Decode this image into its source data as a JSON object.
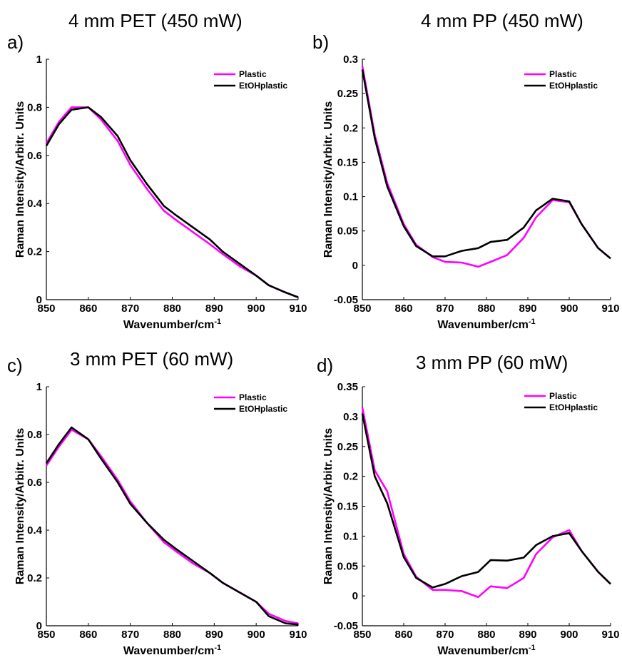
{
  "colors": {
    "plastic": "#ff00ff",
    "etoh": "#000000",
    "axis": "#000000"
  },
  "chart_data": [
    {
      "panel": "a)",
      "title": "4 mm PET (450 mW)",
      "type": "line",
      "xlabel": "Wavenumber/cm",
      "xlabel_sup": "-1",
      "ylabel": "Raman Intensity/Arbitr. Units",
      "xlim": [
        850,
        910
      ],
      "ylim": [
        0,
        1
      ],
      "xticks": [
        "850",
        "860",
        "870",
        "880",
        "890",
        "900",
        "910"
      ],
      "yticks": [
        "0",
        "0.2",
        "0.4",
        "0.6",
        "0.8",
        "1"
      ],
      "legend_position": "top-right",
      "series": [
        {
          "name": "Plastic",
          "color": "#ff00ff",
          "x": [
            850,
            853,
            856,
            860,
            863,
            867,
            870,
            874,
            878,
            881,
            885,
            889,
            892,
            896,
            900,
            903,
            907,
            910
          ],
          "y": [
            0.65,
            0.74,
            0.8,
            0.8,
            0.75,
            0.66,
            0.56,
            0.46,
            0.37,
            0.33,
            0.28,
            0.23,
            0.19,
            0.14,
            0.1,
            0.06,
            0.03,
            0.01
          ]
        },
        {
          "name": "EtOHplastic",
          "color": "#000000",
          "x": [
            850,
            853,
            856,
            860,
            863,
            867,
            870,
            874,
            878,
            881,
            885,
            889,
            892,
            896,
            900,
            903,
            907,
            910
          ],
          "y": [
            0.64,
            0.73,
            0.79,
            0.8,
            0.76,
            0.68,
            0.58,
            0.48,
            0.39,
            0.35,
            0.3,
            0.25,
            0.2,
            0.15,
            0.1,
            0.06,
            0.03,
            0.01
          ]
        }
      ]
    },
    {
      "panel": "b)",
      "title": "4 mm PP (450 mW)",
      "type": "line",
      "xlabel": "Wavenumber/cm",
      "xlabel_sup": "-1",
      "ylabel": "Raman Intensity/Arbitr. Units",
      "xlim": [
        850,
        910
      ],
      "ylim": [
        -0.05,
        0.3
      ],
      "xticks": [
        "850",
        "860",
        "870",
        "880",
        "890",
        "900",
        "910"
      ],
      "yticks": [
        "-0.05",
        "0",
        "0.05",
        "0.1",
        "0.15",
        "0.2",
        "0.25",
        "0.3"
      ],
      "legend_position": "top-right",
      "series": [
        {
          "name": "Plastic",
          "color": "#ff00ff",
          "x": [
            850,
            853,
            856,
            860,
            863,
            867,
            870,
            874,
            878,
            881,
            885,
            889,
            892,
            896,
            900,
            903,
            907,
            910
          ],
          "y": [
            0.29,
            0.19,
            0.12,
            0.06,
            0.03,
            0.012,
            0.005,
            0.004,
            -0.002,
            0.005,
            0.015,
            0.04,
            0.07,
            0.095,
            0.092,
            0.06,
            0.025,
            0.01
          ]
        },
        {
          "name": "EtOHplastic",
          "color": "#000000",
          "x": [
            850,
            853,
            856,
            860,
            863,
            867,
            870,
            874,
            878,
            881,
            885,
            889,
            892,
            896,
            900,
            903,
            907,
            910
          ],
          "y": [
            0.285,
            0.185,
            0.115,
            0.057,
            0.028,
            0.013,
            0.013,
            0.021,
            0.025,
            0.034,
            0.037,
            0.055,
            0.08,
            0.097,
            0.093,
            0.06,
            0.025,
            0.01
          ]
        }
      ]
    },
    {
      "panel": "c)",
      "title": "3 mm PET (60 mW)",
      "type": "line",
      "xlabel": "Wavenumber/cm",
      "xlabel_sup": "-1",
      "ylabel": "Raman Intensity/Arbitr. Units",
      "xlim": [
        850,
        910
      ],
      "ylim": [
        0,
        1
      ],
      "xticks": [
        "850",
        "860",
        "870",
        "880",
        "890",
        "900",
        "910"
      ],
      "yticks": [
        "0",
        "0.2",
        "0.4",
        "0.6",
        "0.8",
        "1"
      ],
      "legend_position": "top-right",
      "series": [
        {
          "name": "Plastic",
          "color": "#ff00ff",
          "x": [
            850,
            853,
            856,
            860,
            863,
            867,
            870,
            874,
            878,
            881,
            885,
            889,
            892,
            896,
            900,
            903,
            907,
            910
          ],
          "y": [
            0.67,
            0.75,
            0.82,
            0.78,
            0.71,
            0.61,
            0.52,
            0.43,
            0.35,
            0.31,
            0.26,
            0.22,
            0.18,
            0.14,
            0.1,
            0.05,
            0.02,
            0.01
          ]
        },
        {
          "name": "EtOHplastic",
          "color": "#000000",
          "x": [
            850,
            853,
            856,
            860,
            863,
            867,
            870,
            874,
            878,
            881,
            885,
            889,
            892,
            896,
            900,
            903,
            907,
            910
          ],
          "y": [
            0.68,
            0.76,
            0.83,
            0.78,
            0.7,
            0.6,
            0.51,
            0.43,
            0.36,
            0.32,
            0.27,
            0.22,
            0.18,
            0.14,
            0.1,
            0.04,
            0.01,
            0.005
          ]
        }
      ]
    },
    {
      "panel": "d)",
      "title": "3 mm PP (60 mW)",
      "type": "line",
      "xlabel": "Wavenumber/cm",
      "xlabel_sup": "-1",
      "ylabel": "Raman Intensity/Arbitr. Units",
      "xlim": [
        850,
        910
      ],
      "ylim": [
        -0.05,
        0.35
      ],
      "xticks": [
        "850",
        "860",
        "870",
        "880",
        "890",
        "900",
        "910"
      ],
      "yticks": [
        "-0.05",
        "0",
        "0.05",
        "0.1",
        "0.15",
        "0.2",
        "0.25",
        "0.3",
        "0.35"
      ],
      "legend_position": "top-right",
      "series": [
        {
          "name": "Plastic",
          "color": "#ff00ff",
          "x": [
            850,
            853,
            856,
            860,
            863,
            867,
            870,
            874,
            878,
            881,
            885,
            889,
            892,
            896,
            900,
            903,
            907,
            910
          ],
          "y": [
            0.315,
            0.21,
            0.175,
            0.07,
            0.032,
            0.01,
            0.01,
            0.008,
            -0.002,
            0.016,
            0.013,
            0.03,
            0.07,
            0.098,
            0.11,
            0.075,
            0.04,
            0.02
          ]
        },
        {
          "name": "EtOHplastic",
          "color": "#000000",
          "x": [
            850,
            853,
            856,
            860,
            863,
            867,
            870,
            874,
            878,
            881,
            885,
            889,
            892,
            896,
            900,
            903,
            907,
            910
          ],
          "y": [
            0.305,
            0.2,
            0.155,
            0.065,
            0.03,
            0.014,
            0.02,
            0.033,
            0.04,
            0.06,
            0.059,
            0.064,
            0.085,
            0.1,
            0.105,
            0.075,
            0.04,
            0.02
          ]
        }
      ]
    }
  ]
}
